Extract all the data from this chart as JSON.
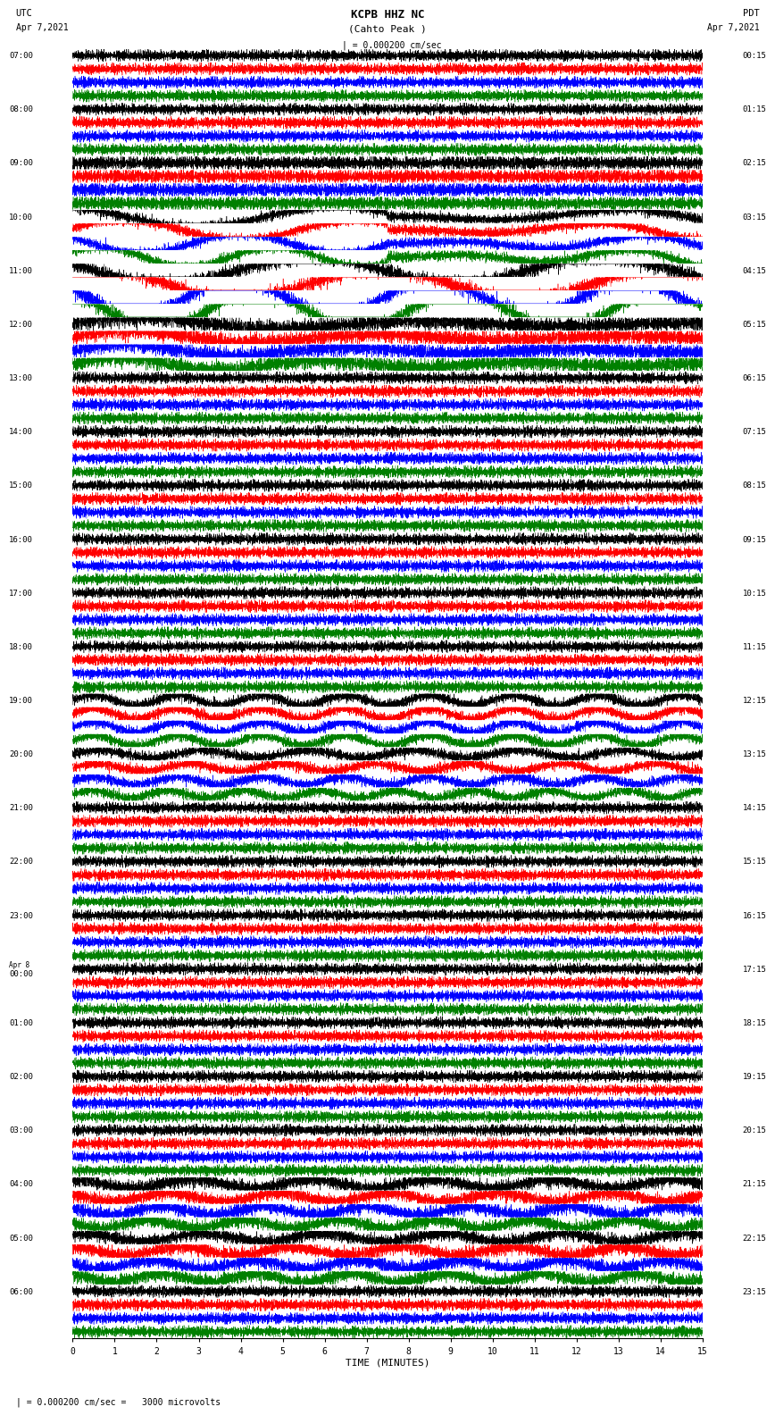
{
  "title": "KCPB HHZ NC",
  "subtitle": "(Cahto Peak )",
  "scale_text": "| = 0.000200 cm/sec",
  "bottom_text": "| = 0.000200 cm/sec =   3000 microvolts",
  "xlabel": "TIME (MINUTES)",
  "bg_color": "#ffffff",
  "trace_colors": [
    "#000000",
    "#ff0000",
    "#0000ff",
    "#008000"
  ],
  "fig_width": 8.5,
  "fig_height": 16.13,
  "dpi": 100,
  "x_min": 0,
  "x_max": 15,
  "num_hours": 24,
  "traces_per_hour": 4,
  "left_labels": [
    "07:00",
    "08:00",
    "09:00",
    "10:00",
    "11:00",
    "12:00",
    "13:00",
    "14:00",
    "15:00",
    "16:00",
    "17:00",
    "18:00",
    "19:00",
    "20:00",
    "21:00",
    "22:00",
    "23:00",
    "Apr 8\n00:00",
    "01:00",
    "02:00",
    "03:00",
    "04:00",
    "05:00",
    "06:00"
  ],
  "right_labels": [
    "00:15",
    "01:15",
    "02:15",
    "03:15",
    "04:15",
    "05:15",
    "06:15",
    "07:15",
    "08:15",
    "09:15",
    "10:15",
    "11:15",
    "12:15",
    "13:15",
    "14:15",
    "15:15",
    "16:15",
    "17:15",
    "18:15",
    "19:15",
    "20:15",
    "21:15",
    "22:15",
    "23:15"
  ],
  "noise_seed": 42
}
